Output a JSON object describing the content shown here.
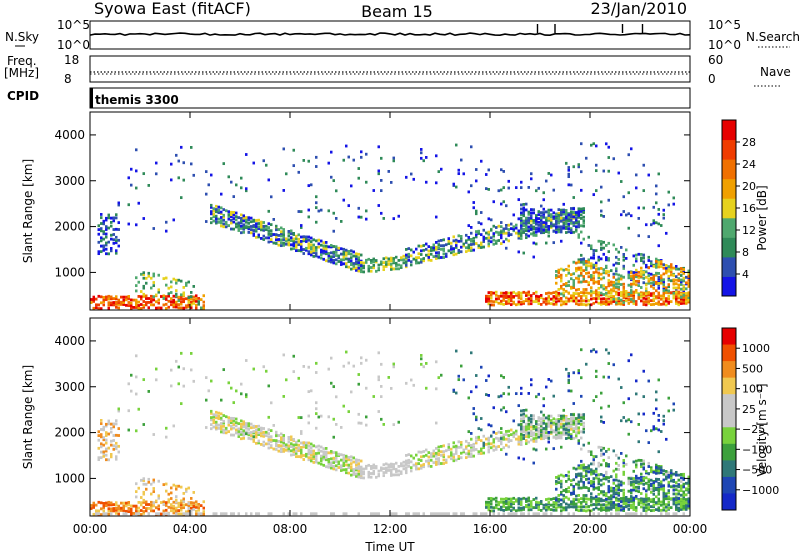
{
  "header": {
    "station": "Syowa East (fitACF)",
    "beam": "Beam 15",
    "date": "23/Jan/2010"
  },
  "summary_panels": {
    "nsky": {
      "label": "N.Sky",
      "ticks": [
        "10^5",
        "10^0"
      ]
    },
    "nsearch": {
      "label": "N.Search",
      "ticks": [
        "10^5",
        "10^0"
      ]
    },
    "freq": {
      "label_top": "Freq.",
      "label_bottom": "[MHz]",
      "ticks": [
        "18",
        "8"
      ]
    },
    "nave": {
      "label": "Nave",
      "ticks": [
        "60",
        "0"
      ]
    },
    "cpid": {
      "label": "CPID",
      "value": "themis 3300"
    }
  },
  "colors": {
    "power": [
      "#1414e6",
      "#2e4fb0",
      "#2f8a58",
      "#4fa86e",
      "#e6d21e",
      "#f0a000",
      "#f07000",
      "#f03c00",
      "#e60000"
    ],
    "velocity": [
      "#e60000",
      "#f05000",
      "#f08c1e",
      "#f0c850",
      "#c8c8c8",
      "#c8c8c8",
      "#78d23c",
      "#3ca03c",
      "#2f7878",
      "#1e46b4",
      "#1428c8"
    ]
  },
  "chart_data": [
    {
      "type": "heatmap",
      "panel": "power",
      "ylabel": "Slant Range [km]",
      "ylim": [
        180,
        4500
      ],
      "yticks": [
        "1000",
        "2000",
        "3000",
        "4000"
      ],
      "xlim_hours": [
        0,
        24
      ],
      "colorbar_label": "Power [dB]",
      "colorbar_ticks": [
        "4",
        "8",
        "12",
        "16",
        "20",
        "24",
        "28"
      ],
      "colorbar_range": [
        0,
        30
      ]
    },
    {
      "type": "heatmap",
      "panel": "velocity",
      "ylabel": "Slant Range [km]",
      "ylim": [
        180,
        4500
      ],
      "yticks": [
        "1000",
        "2000",
        "3000",
        "4000"
      ],
      "xlim_hours": [
        0,
        24
      ],
      "xticks": [
        "00:00",
        "04:00",
        "08:00",
        "12:00",
        "16:00",
        "20:00",
        "00:00"
      ],
      "xlabel": "Time UT",
      "colorbar_label": "Velocity [m s⁻¹]",
      "colorbar_ticks": [
        "1000",
        "500",
        "100",
        "25",
        "−25",
        "−100",
        "−500",
        "−1000"
      ]
    }
  ]
}
